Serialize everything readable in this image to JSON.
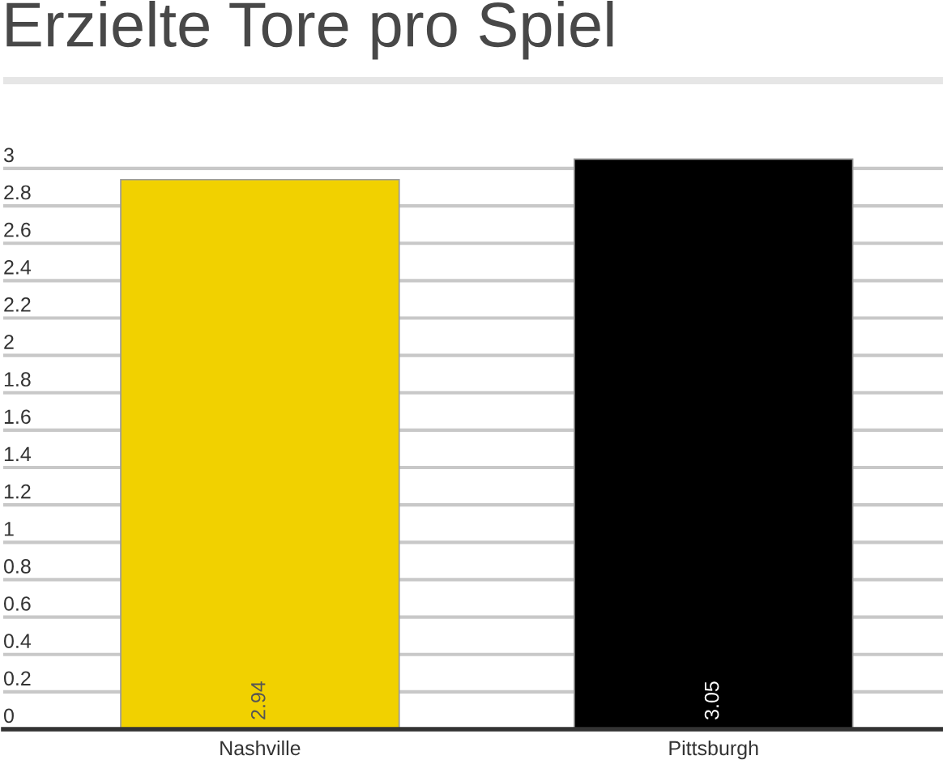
{
  "chart_data": {
    "type": "bar",
    "title": "Erzielte Tore pro Spiel",
    "categories": [
      "Nashville",
      "Pittsburgh"
    ],
    "values": [
      2.94,
      3.05
    ],
    "colors": [
      "#f1d100",
      "#000000"
    ],
    "ylim": [
      0,
      3.05
    ],
    "yticks": [
      0,
      0.2,
      0.4,
      0.6,
      0.8,
      1,
      1.2,
      1.4,
      1.6,
      1.8,
      2,
      2.2,
      2.4,
      2.6,
      2.8,
      3
    ],
    "grid": "y",
    "data_labels": true
  }
}
